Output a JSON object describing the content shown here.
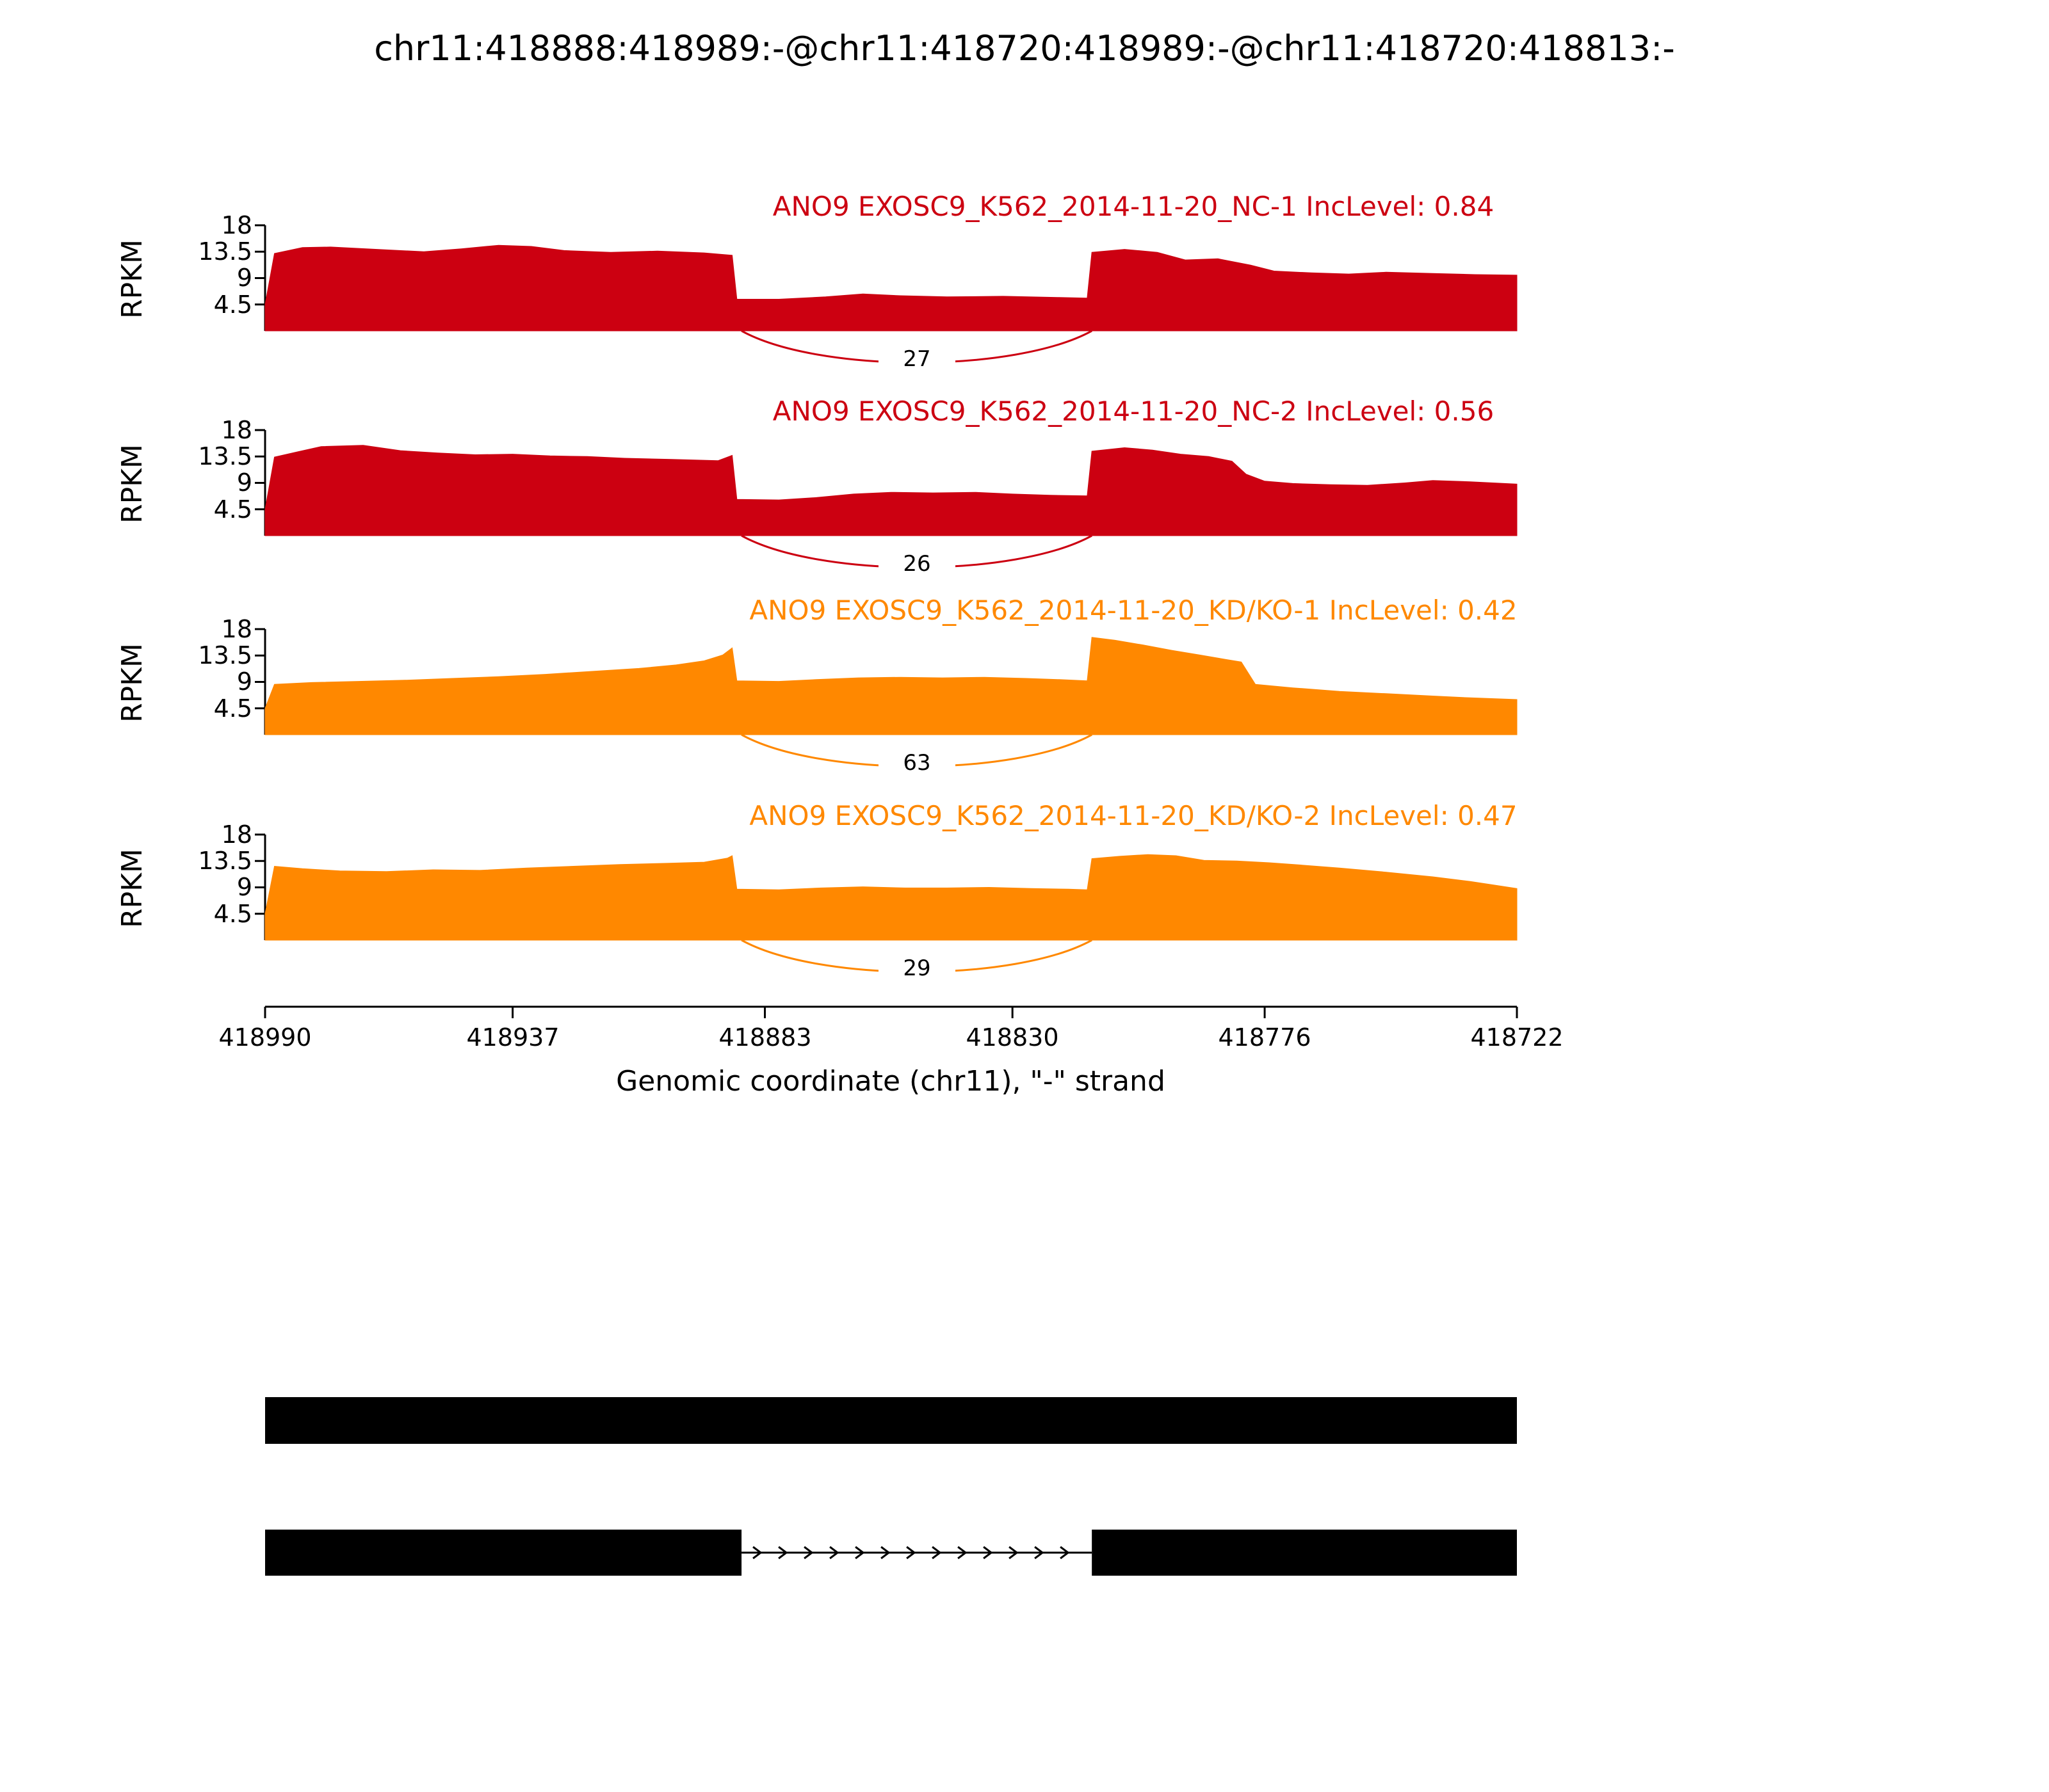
{
  "chart_data": {
    "type": "area",
    "title": "chr11:418888:418989:-@chr11:418720:418989:-@chr11:418720:418813:-",
    "ylabel": "RPKM",
    "ylim": [
      0,
      18
    ],
    "yticks": [
      18,
      13.5,
      9,
      4.5
    ],
    "xlabel": "Genomic coordinate (chr11), \"-\" strand",
    "strand": "-",
    "x_range": [
      418990,
      418722
    ],
    "xticks": [
      418990,
      418937,
      418883,
      418830,
      418776,
      418722
    ],
    "tracks": [
      {
        "label": "ANO9 EXOSC9_K562_2014-11-20_NC-1 IncLevel: 0.84",
        "inc_level": 0.84,
        "color": "#CC0011",
        "junction": {
          "from": 418888,
          "to": 418813,
          "count": 27
        },
        "coverage": [
          [
            418990,
            4.5
          ],
          [
            418988,
            13.2
          ],
          [
            418982,
            14.2
          ],
          [
            418976,
            14.3
          ],
          [
            418966,
            13.9
          ],
          [
            418956,
            13.5
          ],
          [
            418948,
            14.0
          ],
          [
            418940,
            14.6
          ],
          [
            418933,
            14.4
          ],
          [
            418926,
            13.7
          ],
          [
            418916,
            13.4
          ],
          [
            418906,
            13.6
          ],
          [
            418896,
            13.3
          ],
          [
            418890,
            12.9
          ],
          [
            418889,
            5.4
          ],
          [
            418880,
            5.4
          ],
          [
            418870,
            5.8
          ],
          [
            418862,
            6.3
          ],
          [
            418854,
            6.0
          ],
          [
            418844,
            5.8
          ],
          [
            418832,
            5.9
          ],
          [
            418820,
            5.7
          ],
          [
            418814,
            5.6
          ],
          [
            418813,
            13.4
          ],
          [
            418806,
            13.9
          ],
          [
            418799,
            13.4
          ],
          [
            418793,
            12.1
          ],
          [
            418786,
            12.3
          ],
          [
            418779,
            11.2
          ],
          [
            418774,
            10.2
          ],
          [
            418766,
            9.9
          ],
          [
            418758,
            9.7
          ],
          [
            418750,
            10.0
          ],
          [
            418740,
            9.8
          ],
          [
            418731,
            9.6
          ],
          [
            418722,
            9.5
          ]
        ]
      },
      {
        "label": "ANO9 EXOSC9_K562_2014-11-20_NC-2 IncLevel: 0.56",
        "inc_level": 0.56,
        "color": "#CC0011",
        "junction": {
          "from": 418888,
          "to": 418813,
          "count": 26
        },
        "coverage": [
          [
            418990,
            4.5
          ],
          [
            418988,
            13.4
          ],
          [
            418983,
            14.3
          ],
          [
            418978,
            15.2
          ],
          [
            418969,
            15.4
          ],
          [
            418961,
            14.5
          ],
          [
            418953,
            14.1
          ],
          [
            418945,
            13.8
          ],
          [
            418937,
            13.9
          ],
          [
            418929,
            13.6
          ],
          [
            418921,
            13.5
          ],
          [
            418913,
            13.2
          ],
          [
            418903,
            13.0
          ],
          [
            418893,
            12.8
          ],
          [
            418890,
            13.7
          ],
          [
            418889,
            6.2
          ],
          [
            418880,
            6.1
          ],
          [
            418872,
            6.5
          ],
          [
            418864,
            7.1
          ],
          [
            418856,
            7.4
          ],
          [
            418847,
            7.3
          ],
          [
            418838,
            7.4
          ],
          [
            418830,
            7.1
          ],
          [
            418822,
            6.9
          ],
          [
            418814,
            6.8
          ],
          [
            418813,
            14.4
          ],
          [
            418806,
            15.0
          ],
          [
            418800,
            14.6
          ],
          [
            418794,
            13.9
          ],
          [
            418788,
            13.5
          ],
          [
            418783,
            12.7
          ],
          [
            418780,
            10.5
          ],
          [
            418776,
            9.3
          ],
          [
            418770,
            8.9
          ],
          [
            418762,
            8.7
          ],
          [
            418754,
            8.6
          ],
          [
            418746,
            9.0
          ],
          [
            418740,
            9.4
          ],
          [
            418732,
            9.2
          ],
          [
            418722,
            8.8
          ]
        ]
      },
      {
        "label": "ANO9 EXOSC9_K562_2014-11-20_KD/KO-1 IncLevel: 0.42",
        "inc_level": 0.42,
        "color": "#FF8800",
        "junction": {
          "from": 418888,
          "to": 418813,
          "count": 63
        },
        "coverage": [
          [
            418990,
            4.5
          ],
          [
            418988,
            8.6
          ],
          [
            418980,
            8.9
          ],
          [
            418970,
            9.1
          ],
          [
            418960,
            9.3
          ],
          [
            418950,
            9.6
          ],
          [
            418940,
            9.9
          ],
          [
            418930,
            10.3
          ],
          [
            418920,
            10.8
          ],
          [
            418910,
            11.3
          ],
          [
            418902,
            11.9
          ],
          [
            418896,
            12.6
          ],
          [
            418892,
            13.6
          ],
          [
            418890,
            14.8
          ],
          [
            418889,
            9.2
          ],
          [
            418880,
            9.1
          ],
          [
            418872,
            9.4
          ],
          [
            418863,
            9.7
          ],
          [
            418854,
            9.8
          ],
          [
            418845,
            9.7
          ],
          [
            418836,
            9.8
          ],
          [
            418827,
            9.6
          ],
          [
            418820,
            9.4
          ],
          [
            418814,
            9.2
          ],
          [
            418813,
            16.6
          ],
          [
            418808,
            16.1
          ],
          [
            418802,
            15.3
          ],
          [
            418796,
            14.4
          ],
          [
            418790,
            13.6
          ],
          [
            418784,
            12.8
          ],
          [
            418781,
            12.4
          ],
          [
            418778,
            8.6
          ],
          [
            418770,
            8.0
          ],
          [
            418760,
            7.4
          ],
          [
            418750,
            7.0
          ],
          [
            418740,
            6.6
          ],
          [
            418732,
            6.3
          ],
          [
            418722,
            6.0
          ]
        ]
      },
      {
        "label": "ANO9 EXOSC9_K562_2014-11-20_KD/KO-2 IncLevel: 0.47",
        "inc_level": 0.47,
        "color": "#FF8800",
        "junction": {
          "from": 418888,
          "to": 418813,
          "count": 29
        },
        "coverage": [
          [
            418990,
            4.5
          ],
          [
            418988,
            12.6
          ],
          [
            418982,
            12.2
          ],
          [
            418974,
            11.8
          ],
          [
            418964,
            11.7
          ],
          [
            418954,
            12.0
          ],
          [
            418944,
            11.9
          ],
          [
            418934,
            12.3
          ],
          [
            418924,
            12.6
          ],
          [
            418914,
            12.9
          ],
          [
            418904,
            13.1
          ],
          [
            418896,
            13.3
          ],
          [
            418891,
            14.0
          ],
          [
            418890,
            14.4
          ],
          [
            418889,
            8.7
          ],
          [
            418880,
            8.6
          ],
          [
            418871,
            8.9
          ],
          [
            418862,
            9.1
          ],
          [
            418853,
            8.9
          ],
          [
            418844,
            8.9
          ],
          [
            418835,
            9.0
          ],
          [
            418826,
            8.8
          ],
          [
            418818,
            8.7
          ],
          [
            418814,
            8.6
          ],
          [
            418813,
            13.9
          ],
          [
            418807,
            14.3
          ],
          [
            418801,
            14.6
          ],
          [
            418795,
            14.4
          ],
          [
            418789,
            13.6
          ],
          [
            418782,
            13.5
          ],
          [
            418775,
            13.2
          ],
          [
            418768,
            12.8
          ],
          [
            418760,
            12.3
          ],
          [
            418750,
            11.6
          ],
          [
            418740,
            10.8
          ],
          [
            418732,
            10.0
          ],
          [
            418727,
            9.4
          ],
          [
            418722,
            8.8
          ]
        ]
      }
    ],
    "gene_model": {
      "color": "#000000",
      "isoforms": [
        {
          "exons": [
            [
              418990,
              418722
            ]
          ]
        },
        {
          "exons": [
            [
              418990,
              418888
            ],
            [
              418813,
              418722
            ]
          ],
          "arrow_direction": "right"
        }
      ]
    }
  }
}
